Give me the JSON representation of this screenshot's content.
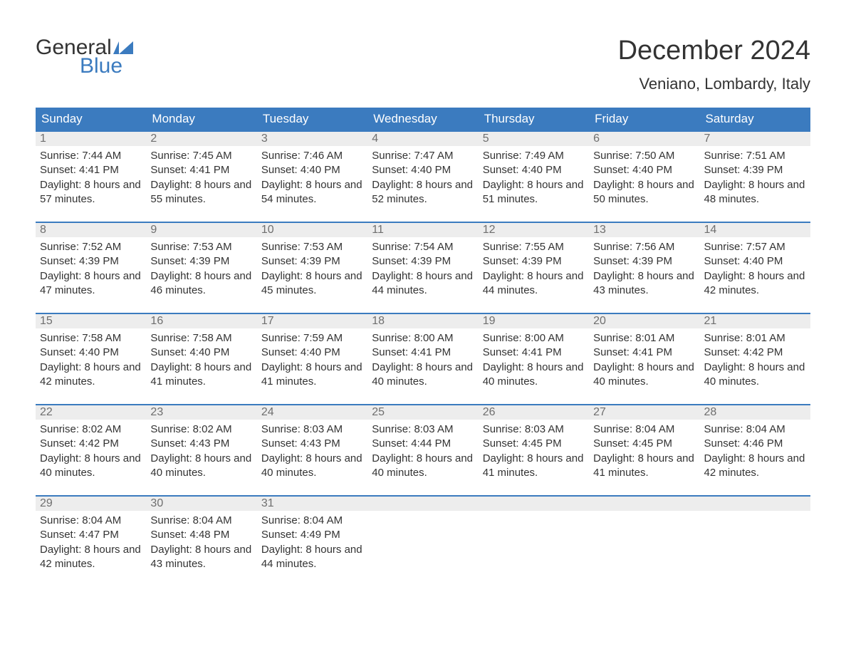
{
  "logo": {
    "text1": "General",
    "text2": "Blue",
    "icon_color": "#3b7bbf"
  },
  "title": "December 2024",
  "location": "Veniano, Lombardy, Italy",
  "colors": {
    "header_bg": "#3b7bbf",
    "header_text": "#ffffff",
    "daynum_bg": "#ededed",
    "daynum_border": "#3b7bbf",
    "daynum_text": "#6f6f6f",
    "body_text": "#333333",
    "page_bg": "#ffffff"
  },
  "day_labels": [
    "Sunday",
    "Monday",
    "Tuesday",
    "Wednesday",
    "Thursday",
    "Friday",
    "Saturday"
  ],
  "weeks": [
    [
      {
        "num": "1",
        "sunrise": "7:44 AM",
        "sunset": "4:41 PM",
        "daylight": "8 hours and 57 minutes."
      },
      {
        "num": "2",
        "sunrise": "7:45 AM",
        "sunset": "4:41 PM",
        "daylight": "8 hours and 55 minutes."
      },
      {
        "num": "3",
        "sunrise": "7:46 AM",
        "sunset": "4:40 PM",
        "daylight": "8 hours and 54 minutes."
      },
      {
        "num": "4",
        "sunrise": "7:47 AM",
        "sunset": "4:40 PM",
        "daylight": "8 hours and 52 minutes."
      },
      {
        "num": "5",
        "sunrise": "7:49 AM",
        "sunset": "4:40 PM",
        "daylight": "8 hours and 51 minutes."
      },
      {
        "num": "6",
        "sunrise": "7:50 AM",
        "sunset": "4:40 PM",
        "daylight": "8 hours and 50 minutes."
      },
      {
        "num": "7",
        "sunrise": "7:51 AM",
        "sunset": "4:39 PM",
        "daylight": "8 hours and 48 minutes."
      }
    ],
    [
      {
        "num": "8",
        "sunrise": "7:52 AM",
        "sunset": "4:39 PM",
        "daylight": "8 hours and 47 minutes."
      },
      {
        "num": "9",
        "sunrise": "7:53 AM",
        "sunset": "4:39 PM",
        "daylight": "8 hours and 46 minutes."
      },
      {
        "num": "10",
        "sunrise": "7:53 AM",
        "sunset": "4:39 PM",
        "daylight": "8 hours and 45 minutes."
      },
      {
        "num": "11",
        "sunrise": "7:54 AM",
        "sunset": "4:39 PM",
        "daylight": "8 hours and 44 minutes."
      },
      {
        "num": "12",
        "sunrise": "7:55 AM",
        "sunset": "4:39 PM",
        "daylight": "8 hours and 44 minutes."
      },
      {
        "num": "13",
        "sunrise": "7:56 AM",
        "sunset": "4:39 PM",
        "daylight": "8 hours and 43 minutes."
      },
      {
        "num": "14",
        "sunrise": "7:57 AM",
        "sunset": "4:40 PM",
        "daylight": "8 hours and 42 minutes."
      }
    ],
    [
      {
        "num": "15",
        "sunrise": "7:58 AM",
        "sunset": "4:40 PM",
        "daylight": "8 hours and 42 minutes."
      },
      {
        "num": "16",
        "sunrise": "7:58 AM",
        "sunset": "4:40 PM",
        "daylight": "8 hours and 41 minutes."
      },
      {
        "num": "17",
        "sunrise": "7:59 AM",
        "sunset": "4:40 PM",
        "daylight": "8 hours and 41 minutes."
      },
      {
        "num": "18",
        "sunrise": "8:00 AM",
        "sunset": "4:41 PM",
        "daylight": "8 hours and 40 minutes."
      },
      {
        "num": "19",
        "sunrise": "8:00 AM",
        "sunset": "4:41 PM",
        "daylight": "8 hours and 40 minutes."
      },
      {
        "num": "20",
        "sunrise": "8:01 AM",
        "sunset": "4:41 PM",
        "daylight": "8 hours and 40 minutes."
      },
      {
        "num": "21",
        "sunrise": "8:01 AM",
        "sunset": "4:42 PM",
        "daylight": "8 hours and 40 minutes."
      }
    ],
    [
      {
        "num": "22",
        "sunrise": "8:02 AM",
        "sunset": "4:42 PM",
        "daylight": "8 hours and 40 minutes."
      },
      {
        "num": "23",
        "sunrise": "8:02 AM",
        "sunset": "4:43 PM",
        "daylight": "8 hours and 40 minutes."
      },
      {
        "num": "24",
        "sunrise": "8:03 AM",
        "sunset": "4:43 PM",
        "daylight": "8 hours and 40 minutes."
      },
      {
        "num": "25",
        "sunrise": "8:03 AM",
        "sunset": "4:44 PM",
        "daylight": "8 hours and 40 minutes."
      },
      {
        "num": "26",
        "sunrise": "8:03 AM",
        "sunset": "4:45 PM",
        "daylight": "8 hours and 41 minutes."
      },
      {
        "num": "27",
        "sunrise": "8:04 AM",
        "sunset": "4:45 PM",
        "daylight": "8 hours and 41 minutes."
      },
      {
        "num": "28",
        "sunrise": "8:04 AM",
        "sunset": "4:46 PM",
        "daylight": "8 hours and 42 minutes."
      }
    ],
    [
      {
        "num": "29",
        "sunrise": "8:04 AM",
        "sunset": "4:47 PM",
        "daylight": "8 hours and 42 minutes."
      },
      {
        "num": "30",
        "sunrise": "8:04 AM",
        "sunset": "4:48 PM",
        "daylight": "8 hours and 43 minutes."
      },
      {
        "num": "31",
        "sunrise": "8:04 AM",
        "sunset": "4:49 PM",
        "daylight": "8 hours and 44 minutes."
      },
      null,
      null,
      null,
      null
    ]
  ],
  "labels": {
    "sunrise": "Sunrise: ",
    "sunset": "Sunset: ",
    "daylight": "Daylight: "
  }
}
